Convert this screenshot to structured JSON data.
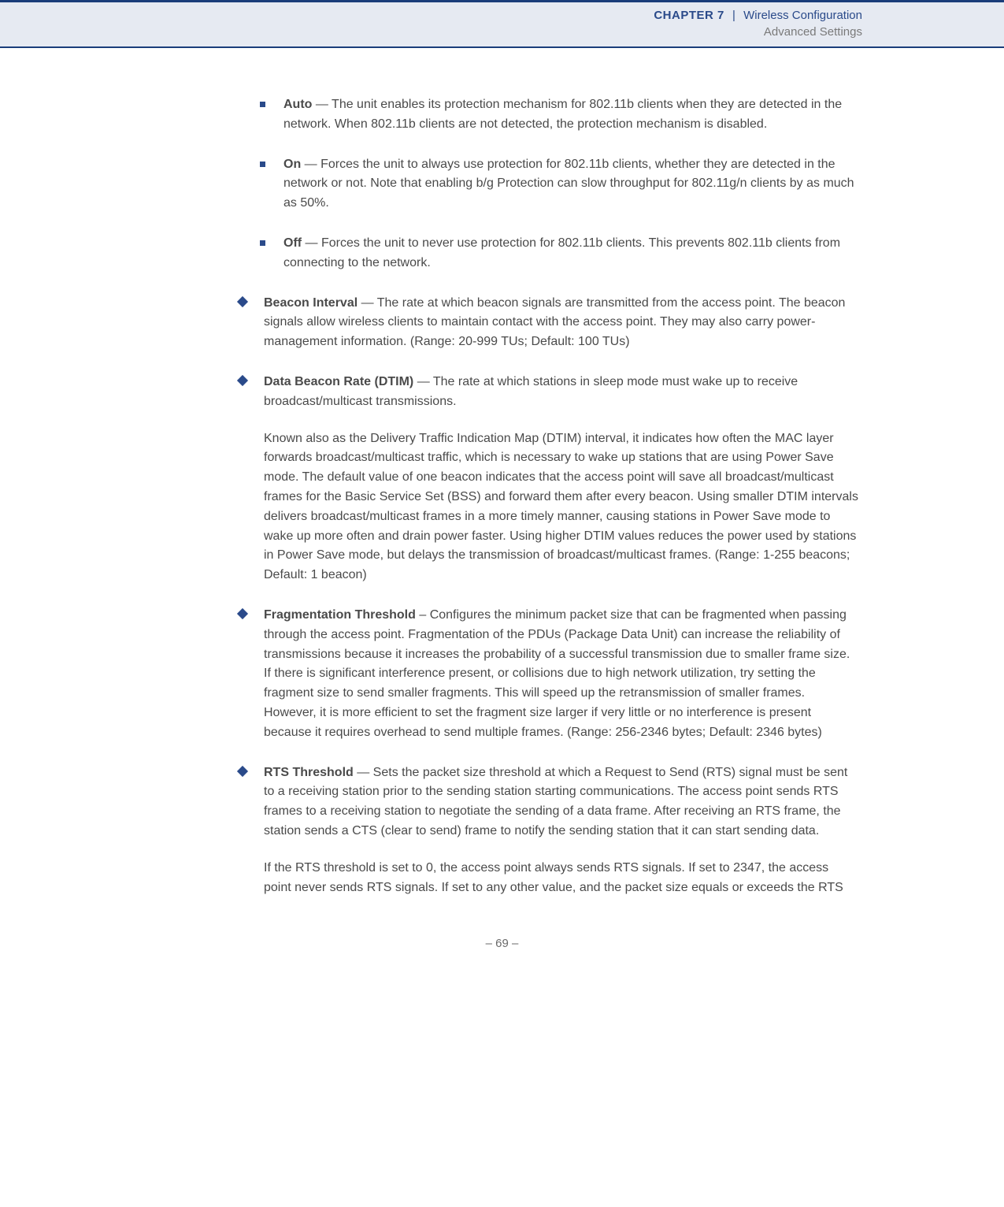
{
  "header": {
    "chapter_label": "CHAPTER 7",
    "divider": "|",
    "chapter_title": "Wireless Configuration",
    "subtitle": "Advanced Settings"
  },
  "sub_items": {
    "auto": {
      "term": "Auto",
      "text": " — The unit enables its protection mechanism for 802.11b clients when they are detected in the network. When 802.11b clients are not detected, the protection mechanism is disabled."
    },
    "on": {
      "term": "On",
      "text": " — Forces the unit to always use protection for 802.11b clients, whether they are detected in the network or not. Note that enabling b/g Protection can slow throughput for 802.11g/n clients by as much as 50%."
    },
    "off": {
      "term": "Off",
      "text": " — Forces the unit to never use protection for 802.11b clients. This prevents 802.11b clients from connecting to the network."
    }
  },
  "main_items": {
    "beacon": {
      "term": "Beacon Interval",
      "text": " — The rate at which beacon signals are transmitted from the access point. The beacon signals allow wireless clients to maintain contact with the access point. They may also carry power-management information. (Range: 20-999 TUs; Default: 100 TUs)"
    },
    "dtim": {
      "term": "Data Beacon Rate (DTIM)",
      "text": " — The rate at which stations in sleep mode must wake up to receive broadcast/multicast transmissions.",
      "para2": "Known also as the Delivery Traffic Indication Map (DTIM) interval, it indicates how often the MAC layer forwards broadcast/multicast traffic, which is necessary to wake up stations that are using Power Save mode. The default value of one beacon indicates that the access point will save all broadcast/multicast frames for the Basic Service Set (BSS) and forward them after every beacon. Using smaller DTIM intervals delivers broadcast/multicast frames in a more timely manner, causing stations in Power Save mode to wake up more often and drain power faster. Using higher DTIM values reduces the power used by stations in Power Save mode, but delays the transmission of broadcast/multicast frames. (Range: 1-255 beacons; Default: 1 beacon)"
    },
    "frag": {
      "term": "Fragmentation Threshold",
      "text": " – Configures the minimum packet size that can be fragmented when passing through the access point. Fragmentation of the PDUs (Package Data Unit) can increase the reliability of transmissions because it increases the probability of a successful transmission due to smaller frame size. If there is significant interference present, or collisions due to high network utilization, try setting the fragment size to send smaller fragments. This will speed up the retransmission of smaller frames. However, it is more efficient to set the fragment size larger if very little or no interference is present because it requires overhead to send multiple frames. (Range: 256-2346 bytes; Default: 2346 bytes)"
    },
    "rts": {
      "term": "RTS Threshold",
      "text": " — Sets the packet size threshold at which a Request to Send (RTS) signal must be sent to a receiving station prior to the sending station starting communications. The access point sends RTS frames to a receiving station to negotiate the sending of a data frame. After receiving an RTS frame, the station sends a CTS (clear to send) frame to notify the sending station that it can start sending data.",
      "para2": "If the RTS threshold is set to 0, the access point always sends RTS signals. If set to 2347, the access point never sends RTS signals. If set to any other value, and the packet size equals or exceeds the RTS"
    }
  },
  "footer": "–  69  –",
  "colors": {
    "header_bg": "#e6eaf2",
    "accent_blue": "#1a3d7a",
    "bullet_blue": "#2a4a8a",
    "body_text": "#4a4a4a"
  }
}
